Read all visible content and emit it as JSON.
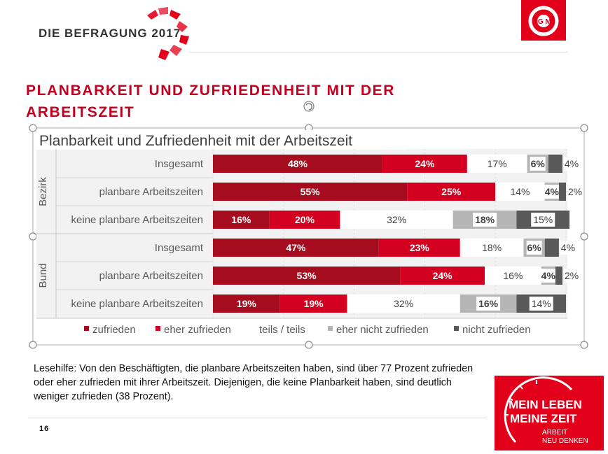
{
  "header": {
    "brand_title": "DIE BEFRAGUNG 2017",
    "main_title_line1": "PLANBARKEIT UND ZUFRIEDENHEIT MIT DER",
    "main_title_line2": "ARBEITSZEIT"
  },
  "logo": {
    "text": "IG M",
    "color": "#e2001a"
  },
  "chart_data": {
    "type": "bar",
    "orientation": "horizontal",
    "stacked": true,
    "title": "Planbarkeit und Zufriedenheit mit der Arbeitszeit",
    "groups": [
      {
        "name": "Bezirk",
        "categories": [
          "Insgesamt",
          "planbare Arbeitszeiten",
          "keine planbare Arbeitszeiten"
        ]
      },
      {
        "name": "Bund",
        "categories": [
          "Insgesamt",
          "planbare Arbeitszeiten",
          "keine planbare Arbeitszeiten"
        ]
      }
    ],
    "series": [
      {
        "name": "zufrieden",
        "color": "#a50d1e",
        "values": [
          48,
          55,
          16,
          47,
          53,
          19
        ],
        "labels": [
          "48%",
          "55%",
          "16%",
          "47%",
          "53%",
          "19%"
        ]
      },
      {
        "name": "eher zufrieden",
        "color": "#d4001f",
        "values": [
          24,
          25,
          20,
          23,
          24,
          19
        ],
        "labels": [
          "24%",
          "25%",
          "20%",
          "23%",
          "24%",
          "19%"
        ]
      },
      {
        "name": "teils / teils",
        "color": "#ffffff",
        "values": [
          17,
          14,
          32,
          18,
          16,
          32
        ],
        "labels": [
          "17%",
          "14%",
          "32%",
          "18%",
          "16%",
          "32%"
        ]
      },
      {
        "name": "eher nicht zufrieden",
        "color": "#b5b5b5",
        "values": [
          6,
          4,
          18,
          6,
          4,
          16
        ],
        "labels": [
          "6%",
          "4%",
          "18%",
          "6%",
          "4%",
          "16%"
        ]
      },
      {
        "name": "nicht zufrieden",
        "color": "#595959",
        "values": [
          4,
          2,
          15,
          4,
          2,
          14
        ],
        "labels": [
          "4%",
          "2%",
          "15%",
          "4%",
          "2%",
          "14%"
        ]
      }
    ],
    "xlim": [
      0,
      100
    ],
    "legend_position": "bottom",
    "grid": true
  },
  "reading_note": "Lesehilfe: Von den Beschäftigten, die planbare Arbeitszeiten haben, sind über 77 Prozent zufrieden oder eher zufrieden mit ihrer Arbeitszeit. Diejenigen, die keine Planbarkeit haben, sind deutlich weniger zufrieden (38 Prozent).",
  "page_number": "16",
  "campaign": {
    "line1": "MEIN LEBEN",
    "line2": "MEINE ZEIT",
    "line3": "ARBEIT",
    "line4": "NEU DENKEN",
    "color": "#e2001a"
  }
}
